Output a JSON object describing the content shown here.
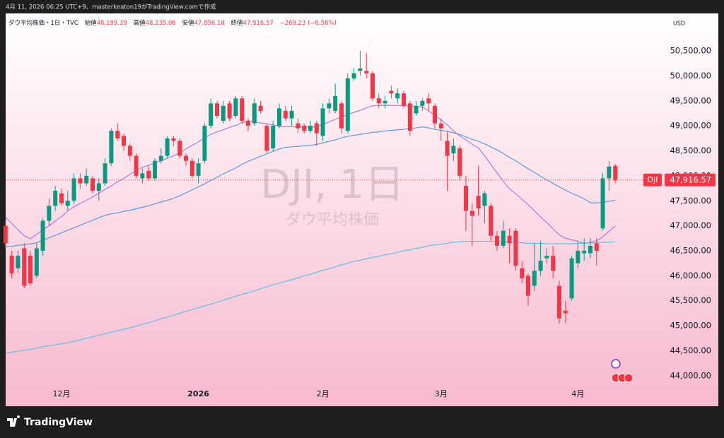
{
  "credit": "4月 11, 2026 06:25 UTC+9、masterkeaton19がTradingView.comで作成",
  "brand": "TradingView",
  "chart_data": {
    "type": "candlestick",
    "header": {
      "symbol": "ダウ平均株価・1日・TVC",
      "open_label": "始値",
      "open": "48,199.39",
      "high_label": "高値",
      "high": "48,235.06",
      "low_label": "安値",
      "low": "47,856.18",
      "close_label": "終値",
      "close": "47,916.57",
      "change": "−269.23 (−0.56%)"
    },
    "watermark": "DJI, 1日",
    "watermark_sub": "ダウ平均株価",
    "currency": "USD",
    "last_price": {
      "value": 47916.57,
      "label": "47,916.57",
      "symbol": "DJI"
    },
    "up_color": "#089981",
    "down_color": "#f23645",
    "ylim": [
      43390,
      51250
    ],
    "yticks": [
      {
        "value": 44000,
        "label": "44,000.00"
      },
      {
        "value": 44500,
        "label": "44,500.00"
      },
      {
        "value": 45000,
        "label": "45,000.00"
      },
      {
        "value": 45500,
        "label": "45,500.00"
      },
      {
        "value": 46000,
        "label": "46,000.00"
      },
      {
        "value": 46500,
        "label": "46,500.00"
      },
      {
        "value": 47000,
        "label": "47,000.00"
      },
      {
        "value": 47500,
        "label": "47,500.00"
      },
      {
        "value": 48000,
        "label": "48,000.00"
      },
      {
        "value": 48500,
        "label": "48,500.00"
      },
      {
        "value": 49000,
        "label": "49,000.00"
      },
      {
        "value": 49500,
        "label": "49,500.00"
      },
      {
        "value": 50000,
        "label": "50,000.00"
      },
      {
        "value": 50500,
        "label": "50,500.00"
      }
    ],
    "categories": [
      null,
      null,
      null,
      null,
      null,
      null,
      null,
      null,
      null,
      "12月",
      null,
      null,
      null,
      null,
      null,
      null,
      null,
      null,
      null,
      null,
      null,
      null,
      null,
      null,
      null,
      null,
      null,
      null,
      null,
      null,
      null,
      "2026",
      null,
      null,
      null,
      null,
      null,
      null,
      null,
      null,
      null,
      null,
      null,
      null,
      null,
      null,
      null,
      null,
      null,
      null,
      null,
      "2月",
      null,
      null,
      null,
      null,
      null,
      null,
      null,
      null,
      null,
      null,
      null,
      null,
      null,
      null,
      null,
      null,
      null,
      null,
      "3月",
      null,
      null,
      null,
      null,
      null,
      null,
      null,
      null,
      null,
      null,
      null,
      null,
      null,
      null,
      null,
      null,
      null,
      null,
      null,
      null,
      null,
      "4月",
      null,
      null,
      null,
      null,
      null,
      null
    ],
    "open": [
      47000,
      46400,
      46150,
      46550,
      46400,
      46000,
      46500,
      47100,
      47400,
      47650,
      47400,
      47500,
      47950,
      47850,
      47950,
      47700,
      47850,
      48250,
      48900,
      48800,
      48600,
      48400,
      47950,
      48100,
      47950,
      48300,
      48400,
      48750,
      48700,
      48400,
      48300,
      48000,
      48300,
      49000,
      49450,
      49100,
      49450,
      49200,
      49550,
      49100,
      49050,
      49400,
      49000,
      48550,
      49000,
      49300,
      49150,
      49050,
      49000,
      48900,
      49050,
      48800,
      49350,
      49300,
      49450,
      48900,
      49950,
      50100,
      50100,
      50050,
      49550,
      49450,
      49700,
      49550,
      49650,
      49450,
      49250,
      49400,
      49550,
      49400,
      49050,
      48700,
      48450,
      48550,
      47800,
      47300,
      47600,
      47400,
      47400,
      46800,
      46600,
      46800,
      46900,
      46150,
      46000,
      45800,
      46100,
      46350,
      46400,
      45800,
      45300,
      45550,
      46250,
      46450,
      46450,
      46650,
      46950,
      47950,
      48199.39
    ],
    "high": [
      47100,
      46500,
      46500,
      46650,
      46500,
      46650,
      47150,
      47550,
      47800,
      47750,
      47700,
      48050,
      48050,
      48150,
      48000,
      47950,
      48350,
      48950,
      49050,
      48850,
      48650,
      48450,
      48150,
      48200,
      48350,
      48550,
      48800,
      48800,
      48750,
      48450,
      48350,
      48350,
      49050,
      49550,
      49500,
      49500,
      49500,
      49600,
      49600,
      49150,
      49550,
      49500,
      49050,
      49100,
      49450,
      49400,
      49400,
      49150,
      49050,
      49100,
      49100,
      49450,
      49550,
      49850,
      49500,
      50050,
      50150,
      50500,
      50450,
      50100,
      49650,
      49600,
      49800,
      49750,
      49700,
      49500,
      49500,
      49550,
      49650,
      49450,
      49150,
      48900,
      48750,
      48600,
      48000,
      47450,
      48200,
      47700,
      47450,
      46900,
      47100,
      46950,
      46950,
      46300,
      46050,
      46650,
      46700,
      46550,
      46600,
      45900,
      45500,
      46400,
      46700,
      46750,
      46750,
      46750,
      48050,
      48300,
      48235.06
    ],
    "low": [
      46550,
      45950,
      46050,
      45750,
      45800,
      45950,
      46400,
      47000,
      47300,
      47400,
      47300,
      47450,
      47750,
      47800,
      47650,
      47500,
      47800,
      48200,
      48700,
      48500,
      48300,
      47950,
      47850,
      47900,
      47900,
      48250,
      48350,
      48600,
      48350,
      48200,
      47950,
      47850,
      48250,
      48950,
      49150,
      49050,
      49100,
      49150,
      49050,
      48900,
      49000,
      49250,
      48450,
      48500,
      48950,
      49100,
      49000,
      48850,
      48850,
      48850,
      48600,
      48700,
      49250,
      49250,
      48850,
      48850,
      49900,
      50000,
      49950,
      49500,
      49350,
      49350,
      49550,
      49450,
      49350,
      48800,
      49200,
      49300,
      49300,
      48950,
      48700,
      47700,
      48300,
      47900,
      46900,
      46600,
      47200,
      47050,
      46700,
      46500,
      46550,
      46250,
      46100,
      45850,
      45400,
      45700,
      46000,
      46250,
      45950,
      45050,
      45050,
      45500,
      46150,
      46300,
      46350,
      46200,
      46900,
      47700,
      47856.18
    ],
    "close": [
      46650,
      46050,
      46400,
      45800,
      45850,
      46550,
      47100,
      47400,
      47700,
      47450,
      47500,
      47950,
      47850,
      48000,
      47700,
      47850,
      48250,
      48900,
      48750,
      48600,
      48400,
      48000,
      48050,
      47950,
      48300,
      48400,
      48750,
      48700,
      48400,
      48300,
      48000,
      48250,
      49000,
      49450,
      49200,
      49400,
      49150,
      49550,
      49100,
      49000,
      49450,
      49300,
      48500,
      49000,
      49350,
      49150,
      49300,
      48950,
      48900,
      49000,
      48850,
      49350,
      49450,
      49600,
      48950,
      49950,
      50050,
      50150,
      50050,
      49550,
      49450,
      49500,
      49650,
      49650,
      49400,
      48900,
      49400,
      49500,
      49450,
      49050,
      48950,
      48400,
      48600,
      48000,
      47300,
      47200,
      47350,
      47650,
      46800,
      46600,
      46900,
      46650,
      46200,
      45950,
      45600,
      46100,
      46300,
      46400,
      46100,
      45150,
      45250,
      46350,
      46500,
      46500,
      46600,
      46500,
      47950,
      48185.8,
      47916.57
    ],
    "series": [
      {
        "color": "#a374dc",
        "values": [
          47170,
          47050,
          46920,
          46800,
          46740,
          46830,
          46920,
          47000,
          47100,
          47180,
          47300,
          47380,
          47450,
          47510,
          47580,
          47650,
          47730,
          47800,
          47880,
          47950,
          48030,
          48110,
          48170,
          48210,
          48260,
          48300,
          48350,
          48400,
          48460,
          48540,
          48610,
          48680,
          48760,
          48830,
          48880,
          48920,
          48970,
          49010,
          49060,
          49100,
          49080,
          49060,
          49040,
          49020,
          48990,
          48980,
          48980,
          48980,
          48980,
          48980,
          48980,
          49030,
          49080,
          49130,
          49180,
          49230,
          49270,
          49310,
          49360,
          49400,
          49410,
          49410,
          49410,
          49410,
          49400,
          49400,
          49390,
          49380,
          49300,
          49210,
          49120,
          49020,
          48900,
          48800,
          48720,
          48630,
          48560,
          48400,
          48230,
          48060,
          47890,
          47740,
          47640,
          47530,
          47420,
          47300,
          47180,
          47060,
          46940,
          46820,
          46750,
          46720,
          46690,
          46650,
          46670,
          46700,
          46780,
          46890,
          47000
        ]
      },
      {
        "color": "#4f93db",
        "values": [
          46580,
          46590,
          46610,
          46620,
          46640,
          46660,
          46710,
          46760,
          46810,
          46860,
          46910,
          46960,
          47010,
          47060,
          47110,
          47160,
          47210,
          47240,
          47260,
          47290,
          47310,
          47340,
          47370,
          47400,
          47440,
          47480,
          47510,
          47550,
          47600,
          47660,
          47720,
          47780,
          47840,
          47910,
          47970,
          48040,
          48100,
          48160,
          48230,
          48290,
          48340,
          48390,
          48440,
          48490,
          48540,
          48570,
          48580,
          48590,
          48600,
          48610,
          48630,
          48660,
          48690,
          48720,
          48760,
          48790,
          48810,
          48830,
          48850,
          48870,
          48880,
          48900,
          48910,
          48920,
          48930,
          48950,
          48960,
          48980,
          48960,
          48930,
          48910,
          48890,
          48860,
          48830,
          48780,
          48730,
          48690,
          48640,
          48580,
          48520,
          48450,
          48370,
          48300,
          48220,
          48140,
          48070,
          47990,
          47920,
          47850,
          47780,
          47710,
          47650,
          47600,
          47540,
          47460,
          47460,
          47470,
          47490,
          47510
        ]
      },
      {
        "color": "#55bfe0",
        "values": [
          44450,
          44470,
          44490,
          44510,
          44530,
          44550,
          44580,
          44600,
          44620,
          44640,
          44660,
          44690,
          44720,
          44750,
          44780,
          44810,
          44840,
          44870,
          44900,
          44930,
          44960,
          44990,
          45030,
          45060,
          45100,
          45140,
          45170,
          45210,
          45250,
          45290,
          45320,
          45360,
          45400,
          45430,
          45470,
          45510,
          45550,
          45590,
          45630,
          45660,
          45700,
          45740,
          45780,
          45820,
          45850,
          45890,
          45920,
          45960,
          46000,
          46030,
          46070,
          46110,
          46140,
          46180,
          46220,
          46250,
          46290,
          46310,
          46340,
          46370,
          46390,
          46420,
          46440,
          46470,
          46500,
          46520,
          46550,
          46570,
          46600,
          46620,
          46630,
          46650,
          46670,
          46680,
          46690,
          46690,
          46690,
          46690,
          46690,
          46690,
          46680,
          46680,
          46670,
          46660,
          46650,
          46650,
          46650,
          46640,
          46640,
          46640,
          46640,
          46640,
          46650,
          46650,
          46660,
          46660,
          46670,
          46670,
          46680
        ]
      }
    ]
  }
}
